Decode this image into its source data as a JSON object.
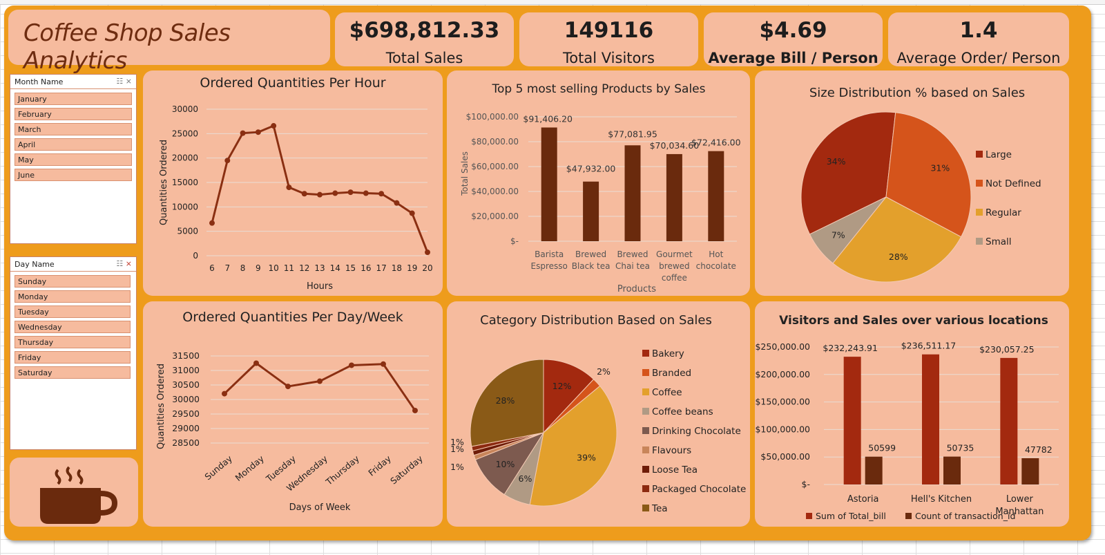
{
  "dashboard": {
    "title": "Coffee Shop Sales Analytics",
    "kpis": [
      {
        "value": "$698,812.33",
        "label": "Total Sales"
      },
      {
        "value": "149116",
        "label": "Total Visitors"
      },
      {
        "value": "$4.69",
        "label": "Average Bill / Person"
      },
      {
        "value": "1.4",
        "label": "Average Order/ Person"
      }
    ]
  },
  "slicers": {
    "month": {
      "title": "Month Name",
      "items": [
        "January",
        "February",
        "March",
        "April",
        "May",
        "June"
      ]
    },
    "day": {
      "title": "Day Name",
      "items": [
        "Sunday",
        "Monday",
        "Tuesday",
        "Wednesday",
        "Thursday",
        "Friday",
        "Saturday"
      ]
    }
  },
  "colors": {
    "background": "#ee9c1c",
    "card": "#f6bb9e",
    "dark_brown": "#6a2a0d",
    "line": "#8a2f12"
  },
  "icons": {
    "logo": "coffee-cup-icon",
    "multi_select": "multi-select-icon",
    "clear_filter": "clear-filter-icon"
  },
  "chart_data": [
    {
      "id": "hourly",
      "type": "line",
      "title": "Ordered Quantities Per Hour",
      "xlabel": "Hours",
      "ylabel": "Quantities Ordered",
      "x": [
        6,
        7,
        8,
        9,
        10,
        11,
        12,
        13,
        14,
        15,
        16,
        17,
        18,
        19,
        20
      ],
      "values": [
        6700,
        19500,
        25100,
        25300,
        26600,
        14000,
        12700,
        12500,
        12800,
        13000,
        12800,
        12700,
        10800,
        8700,
        700
      ],
      "yticks": [
        "0",
        "5000",
        "10000",
        "15000",
        "20000",
        "25000",
        "30000"
      ],
      "ylim": [
        0,
        30000
      ],
      "grid": true
    },
    {
      "id": "top5",
      "type": "bar",
      "title": "Top 5 most selling Products by Sales",
      "xlabel": "Products",
      "ylabel": "Total Sales",
      "categories": [
        "Barista Espresso",
        "Brewed Black tea",
        "Brewed Chai tea",
        "Gourmet brewed coffee",
        "Hot chocolate"
      ],
      "category_lines": [
        [
          "Barista",
          "Espresso"
        ],
        [
          "Brewed",
          "Black tea"
        ],
        [
          "Brewed",
          "Chai tea"
        ],
        [
          "Gourmet",
          "brewed",
          "coffee"
        ],
        [
          "Hot",
          "chocolate"
        ]
      ],
      "values": [
        91406.2,
        47932.0,
        77081.95,
        70034.6,
        72416.0
      ],
      "value_labels": [
        "$91,406.20",
        "$47,932.00",
        "$77,081.95",
        "$70,034.60",
        "$72,416.00"
      ],
      "yticks": [
        "$-",
        "$20,000.00",
        "$40,000.00",
        "$60,000.00",
        "$80,000.00",
        "$100,000.00"
      ],
      "ylim": [
        0,
        100000
      ],
      "grid": true
    },
    {
      "id": "size",
      "type": "pie",
      "title": "Size Distribution % based on Sales",
      "labels": [
        "Large",
        "Not Defined",
        "Regular",
        "Small"
      ],
      "values": [
        34,
        31,
        28,
        7
      ],
      "value_labels": [
        "34%",
        "31%",
        "28%",
        "7%"
      ],
      "colors": [
        "#a3290f",
        "#d5541b",
        "#e3a02c",
        "#b09a84"
      ],
      "legend": "right"
    },
    {
      "id": "daily",
      "type": "line",
      "title": "Ordered Quantities Per Day/Week",
      "xlabel": "Days of Week",
      "ylabel": "Quantities Ordered",
      "categories": [
        "Sunday",
        "Monday",
        "Tuesday",
        "Wednesday",
        "Thursday",
        "Friday",
        "Saturday"
      ],
      "values": [
        30200,
        31250,
        30450,
        30630,
        31180,
        31220,
        29620
      ],
      "yticks": [
        "28500",
        "29000",
        "29500",
        "30000",
        "30500",
        "31000",
        "31500"
      ],
      "ylim": [
        28500,
        31500
      ],
      "grid": true
    },
    {
      "id": "category",
      "type": "pie",
      "title": "Category Distribution Based on Sales",
      "labels": [
        "Bakery",
        "Branded",
        "Coffee",
        "Coffee beans",
        "Drinking Chocolate",
        "Flavours",
        "Loose Tea",
        "Packaged Chocolate",
        "Tea"
      ],
      "values": [
        12,
        2,
        39,
        6,
        10,
        1,
        1,
        1,
        28
      ],
      "value_labels": [
        "12%",
        "2%",
        "39%",
        "6%",
        "10%",
        "1%",
        "1%",
        "1%",
        "28%"
      ],
      "colors": [
        "#a3290f",
        "#d5541b",
        "#e3a02c",
        "#b09a84",
        "#7d5a4f",
        "#c8855a",
        "#6e1c08",
        "#8c2a10",
        "#8a5a17"
      ],
      "legend": "right"
    },
    {
      "id": "locations",
      "type": "bar",
      "title": "Visitors and Sales over various locations",
      "categories": [
        "Astoria",
        "Hell's Kitchen",
        "Lower Manhattan"
      ],
      "category_lines": [
        [
          "Astoria"
        ],
        [
          "Hell's Kitchen"
        ],
        [
          "Lower",
          "Manhattan"
        ]
      ],
      "series": [
        {
          "name": "Sum of Total_bill",
          "values": [
            232243.91,
            236511.17,
            230057.25
          ],
          "value_labels": [
            "$232,243.91",
            "$236,511.17",
            "$230,057.25"
          ],
          "color": "#a3290f"
        },
        {
          "name": "Count of transaction_id",
          "values": [
            50599,
            50735,
            47782
          ],
          "value_labels": [
            "50599",
            "50735",
            "47782"
          ],
          "color": "#6a2a0d"
        }
      ],
      "yticks": [
        "$-",
        "$50,000.00",
        "$100,000.00",
        "$150,000.00",
        "$200,000.00",
        "$250,000.00"
      ],
      "ylim": [
        0,
        250000
      ],
      "legend": "bottom",
      "grid": true
    }
  ]
}
